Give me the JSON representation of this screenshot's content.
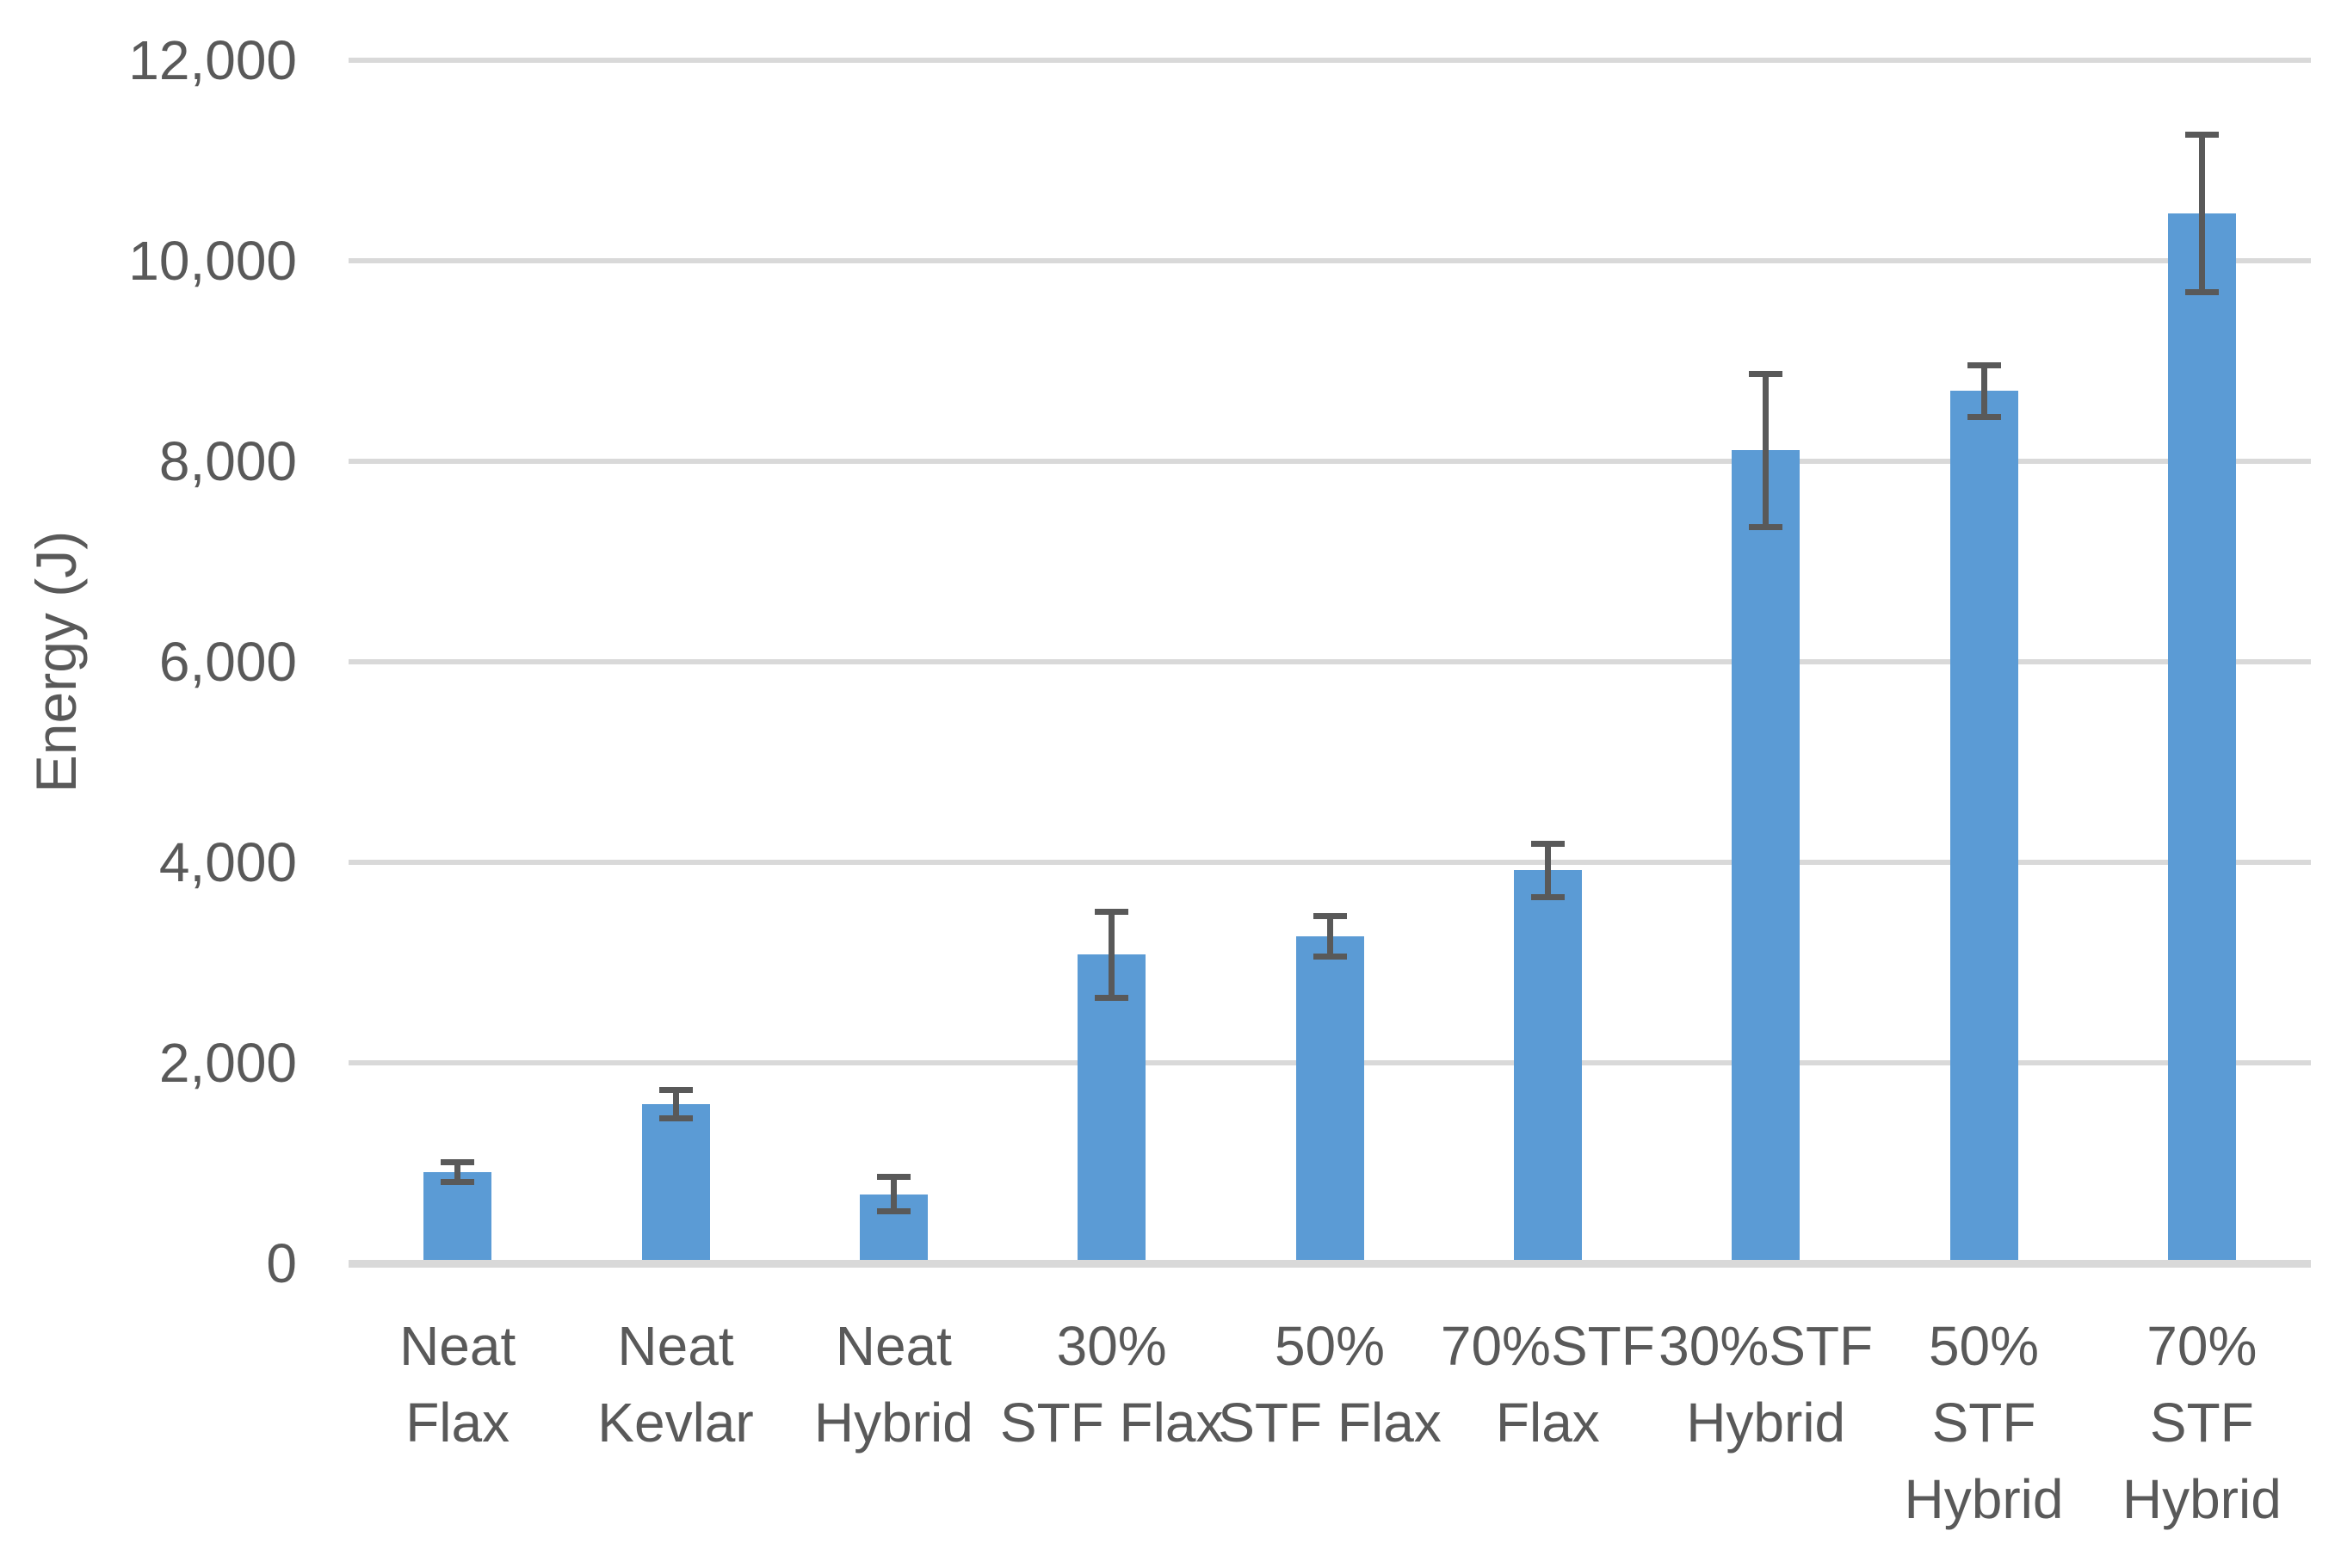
{
  "chart_data": {
    "type": "bar",
    "title": "",
    "xlabel": "",
    "ylabel": "Energy (J)",
    "categories": [
      "Neat Flax",
      "Neat Kevlar",
      "Neat Hybrid",
      "30% STF Flax",
      "50% STF Flax",
      "70%STF Flax",
      "30%STF Hybrid",
      "50% STF Hybrid",
      "70% STF Hybrid"
    ],
    "category_label_lines": [
      [
        "Neat",
        "Flax"
      ],
      [
        "Neat",
        "Kevlar"
      ],
      [
        "Neat",
        "Hybrid"
      ],
      [
        "30%",
        "STF Flax"
      ],
      [
        "50%",
        "STF Flax"
      ],
      [
        "70%STF",
        "Flax"
      ],
      [
        "30%STF",
        "Hybrid"
      ],
      [
        "50%",
        "STF",
        "Hybrid"
      ],
      [
        "70%",
        "STF",
        "Hybrid"
      ]
    ],
    "values": [
      910,
      1590,
      690,
      3080,
      3260,
      3920,
      8110,
      8700,
      10470
    ],
    "errors": [
      100,
      140,
      170,
      430,
      200,
      265,
      765,
      260,
      785
    ],
    "ylim": [
      0,
      12000
    ],
    "ytick_step": 2000,
    "yticks": [
      0,
      2000,
      4000,
      6000,
      8000,
      10000,
      12000
    ],
    "ytick_labels": [
      "0",
      "2,000",
      "4,000",
      "6,000",
      "8,000",
      "10,000",
      "12,000"
    ],
    "grid": true,
    "legend": false,
    "error_bars": true,
    "bar_color": "#5B9BD5",
    "error_bar_color": "#595959",
    "gridline_color": "#D9D9D9",
    "axis_line_color": "#D9D9D9",
    "axis_text_color": "#595959"
  }
}
